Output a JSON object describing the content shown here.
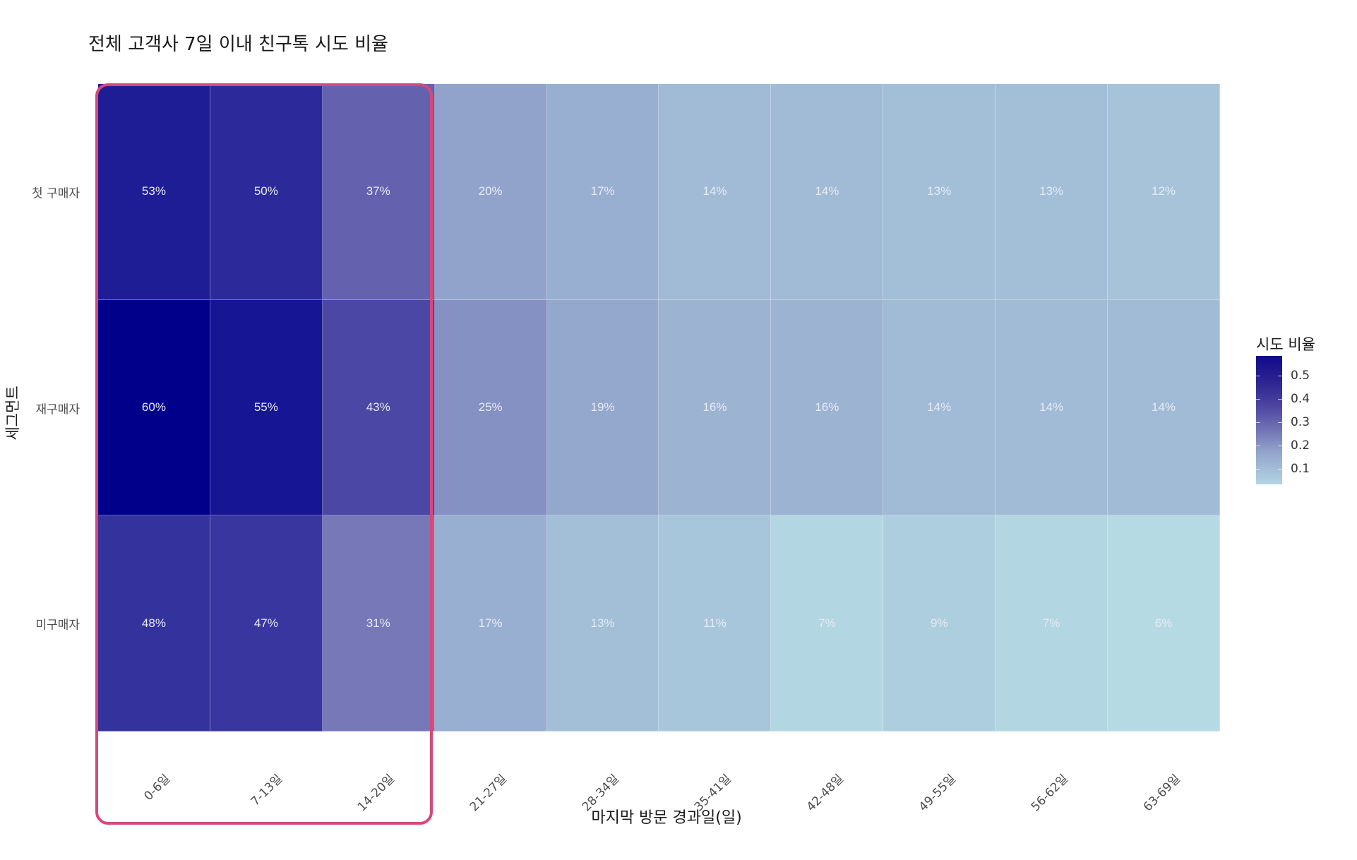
{
  "chart_data": {
    "type": "heatmap",
    "title": "전체 고객사 7일 이내 친구톡 시도 비율",
    "xlabel": "마지막 방문 경과일(일)",
    "ylabel": "세그먼트",
    "x_categories": [
      "0-6일",
      "7-13일",
      "14-20일",
      "21-27일",
      "28-34일",
      "35-41일",
      "42-48일",
      "49-55일",
      "56-62일",
      "63-69일"
    ],
    "y_categories": [
      "첫 구매자",
      "재구매자",
      "미구매자"
    ],
    "values": [
      [
        0.53,
        0.5,
        0.37,
        0.2,
        0.17,
        0.14,
        0.14,
        0.13,
        0.13,
        0.12
      ],
      [
        0.6,
        0.55,
        0.43,
        0.25,
        0.19,
        0.16,
        0.16,
        0.14,
        0.14,
        0.14
      ],
      [
        0.48,
        0.47,
        0.31,
        0.17,
        0.13,
        0.11,
        0.07,
        0.09,
        0.07,
        0.06
      ]
    ],
    "labels": [
      [
        "53%",
        "50%",
        "37%",
        "20%",
        "17%",
        "14%",
        "14%",
        "13%",
        "13%",
        "12%"
      ],
      [
        "60%",
        "55%",
        "43%",
        "25%",
        "19%",
        "16%",
        "16%",
        "14%",
        "14%",
        "14%"
      ],
      [
        "48%",
        "47%",
        "31%",
        "17%",
        "13%",
        "11%",
        "7%",
        "9%",
        "7%",
        "6%"
      ]
    ],
    "legend": {
      "title": "시도 비율",
      "ticks": [
        "0.5",
        "0.4",
        "0.3",
        "0.2",
        "0.1"
      ],
      "tick_values": [
        0.5,
        0.4,
        0.3,
        0.2,
        0.1
      ],
      "low_color": "#b5dae4",
      "high_color": "#00008b",
      "range": [
        0.06,
        0.6
      ]
    },
    "highlight": {
      "columns": [
        "0-6일",
        "7-13일",
        "14-20일"
      ],
      "color": "#d6497a"
    },
    "grid": false,
    "legend_position": "right"
  }
}
